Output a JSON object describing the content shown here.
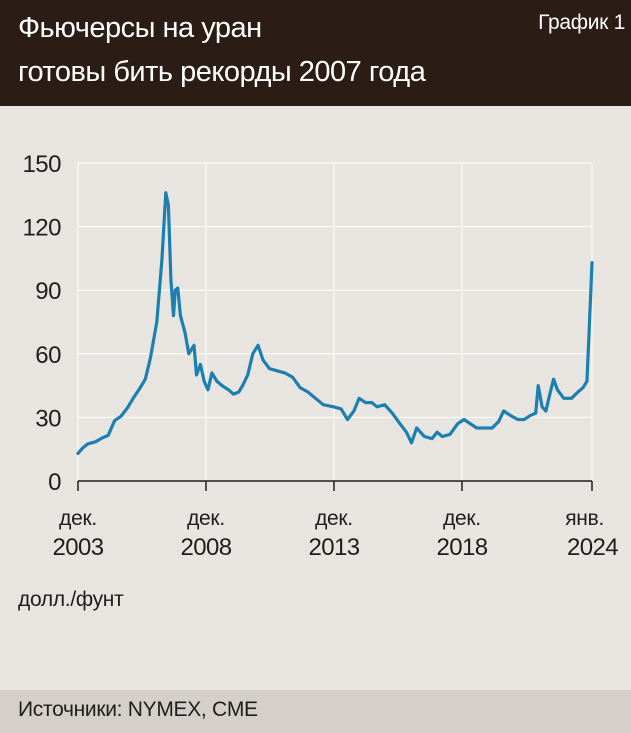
{
  "header": {
    "title_line1": "Фьючерсы на уран",
    "title_line2": "готовы бить рекорды 2007 года",
    "badge": "График 1"
  },
  "footer": {
    "source": "Источники: NYMEX, CME"
  },
  "colors": {
    "header_bg": "#2b1d15",
    "page_bg": "#e8e5e1",
    "footer_bg": "#d4cfc9",
    "line": "#1b7fb0",
    "grid": "#ffffff"
  },
  "chart_data": {
    "type": "line",
    "title": "Фьючерсы на уран готовы бить рекорды 2007 года",
    "ylabel": "долл./фунт",
    "xlabel": "",
    "ylim": [
      0,
      150
    ],
    "yticks": [
      0,
      30,
      60,
      90,
      120,
      150
    ],
    "xlim": [
      2003.92,
      2024.0
    ],
    "grid": true,
    "xticks": [
      {
        "x": 2003.92,
        "line1": "дек.",
        "line2": "2003"
      },
      {
        "x": 2008.92,
        "line1": "дек.",
        "line2": "2008"
      },
      {
        "x": 2013.92,
        "line1": "дек.",
        "line2": "2013"
      },
      {
        "x": 2018.92,
        "line1": "дек.",
        "line2": "2018"
      },
      {
        "x": 2024.0,
        "line1": "янв.",
        "line2": "2024"
      }
    ],
    "series": [
      {
        "values": [
          [
            2003.92,
            13
          ],
          [
            2004.1,
            15.5
          ],
          [
            2004.3,
            17.5
          ],
          [
            2004.6,
            18.5
          ],
          [
            2004.9,
            20.5
          ],
          [
            2005.1,
            21.5
          ],
          [
            2005.35,
            28.5
          ],
          [
            2005.6,
            30.5
          ],
          [
            2005.85,
            34.5
          ],
          [
            2006.1,
            39.5
          ],
          [
            2006.35,
            44
          ],
          [
            2006.55,
            48
          ],
          [
            2006.75,
            58
          ],
          [
            2007.0,
            75
          ],
          [
            2007.2,
            105
          ],
          [
            2007.35,
            136
          ],
          [
            2007.45,
            130
          ],
          [
            2007.55,
            95
          ],
          [
            2007.65,
            78
          ],
          [
            2007.72,
            90
          ],
          [
            2007.82,
            91
          ],
          [
            2007.92,
            78
          ],
          [
            2008.1,
            70
          ],
          [
            2008.25,
            60
          ],
          [
            2008.45,
            64
          ],
          [
            2008.55,
            50
          ],
          [
            2008.7,
            55
          ],
          [
            2008.85,
            47
          ],
          [
            2009.0,
            43
          ],
          [
            2009.15,
            51
          ],
          [
            2009.35,
            47
          ],
          [
            2009.55,
            45
          ],
          [
            2009.8,
            43
          ],
          [
            2010.0,
            41
          ],
          [
            2010.2,
            42
          ],
          [
            2010.35,
            45
          ],
          [
            2010.55,
            50
          ],
          [
            2010.75,
            60
          ],
          [
            2010.95,
            64
          ],
          [
            2011.15,
            57
          ],
          [
            2011.4,
            53
          ],
          [
            2011.7,
            52
          ],
          [
            2012.0,
            51
          ],
          [
            2012.3,
            49
          ],
          [
            2012.6,
            44
          ],
          [
            2012.9,
            42
          ],
          [
            2013.2,
            39
          ],
          [
            2013.5,
            36
          ],
          [
            2013.9,
            35
          ],
          [
            2014.2,
            34
          ],
          [
            2014.45,
            29
          ],
          [
            2014.7,
            33
          ],
          [
            2014.9,
            39
          ],
          [
            2015.15,
            37
          ],
          [
            2015.4,
            37
          ],
          [
            2015.6,
            35
          ],
          [
            2015.9,
            36
          ],
          [
            2016.2,
            32
          ],
          [
            2016.5,
            27
          ],
          [
            2016.75,
            23
          ],
          [
            2016.95,
            18
          ],
          [
            2017.15,
            25
          ],
          [
            2017.45,
            21
          ],
          [
            2017.75,
            20
          ],
          [
            2017.95,
            23
          ],
          [
            2018.15,
            21
          ],
          [
            2018.45,
            22
          ],
          [
            2018.75,
            27
          ],
          [
            2019.0,
            29
          ],
          [
            2019.25,
            27
          ],
          [
            2019.5,
            25
          ],
          [
            2019.8,
            25
          ],
          [
            2020.1,
            25
          ],
          [
            2020.35,
            28
          ],
          [
            2020.55,
            33
          ],
          [
            2020.8,
            31
          ],
          [
            2021.1,
            29
          ],
          [
            2021.35,
            29
          ],
          [
            2021.6,
            31
          ],
          [
            2021.8,
            32
          ],
          [
            2021.9,
            45
          ],
          [
            2022.05,
            35
          ],
          [
            2022.2,
            33
          ],
          [
            2022.35,
            41
          ],
          [
            2022.5,
            48
          ],
          [
            2022.65,
            43
          ],
          [
            2022.9,
            39
          ],
          [
            2023.2,
            39
          ],
          [
            2023.45,
            42
          ],
          [
            2023.65,
            44
          ],
          [
            2023.8,
            47
          ],
          [
            2023.88,
            68
          ],
          [
            2024.0,
            103
          ]
        ]
      }
    ]
  }
}
